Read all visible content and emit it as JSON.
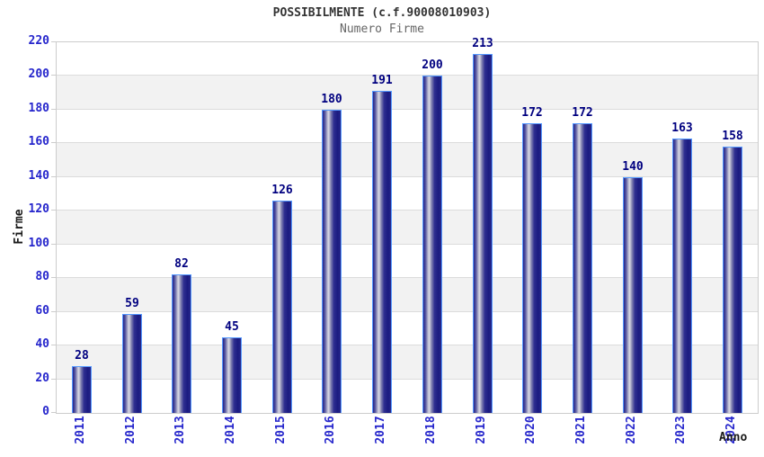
{
  "chart_data": {
    "type": "bar",
    "title": "POSSIBILMENTE (c.f.90008010903)",
    "subtitle": "Numero Firme",
    "xlabel": "Anno",
    "ylabel": "Firme",
    "categories": [
      "2011",
      "2012",
      "2013",
      "2014",
      "2015",
      "2016",
      "2017",
      "2018",
      "2019",
      "2020",
      "2021",
      "2022",
      "2023",
      "2024"
    ],
    "values": [
      28,
      59,
      82,
      45,
      126,
      180,
      191,
      200,
      213,
      172,
      172,
      140,
      163,
      158
    ],
    "ylim": [
      0,
      220
    ],
    "ytick_step": 20,
    "grid": true,
    "legend": "none",
    "band_style": "alternating horizontal 20-unit bands",
    "colors": {
      "title": "#333333",
      "subtitle": "#666666",
      "tick_label": "#2626cc",
      "value_label": "#000080",
      "axis_title": "#1a1a1a",
      "band_gray": "#f2f2f2",
      "gridline": "#dcdcdc",
      "plot_border": "#cccccc",
      "bar_border": "#5599ff",
      "bar_dark": "#23238c",
      "bar_highlight": "#d9d9e4"
    }
  }
}
